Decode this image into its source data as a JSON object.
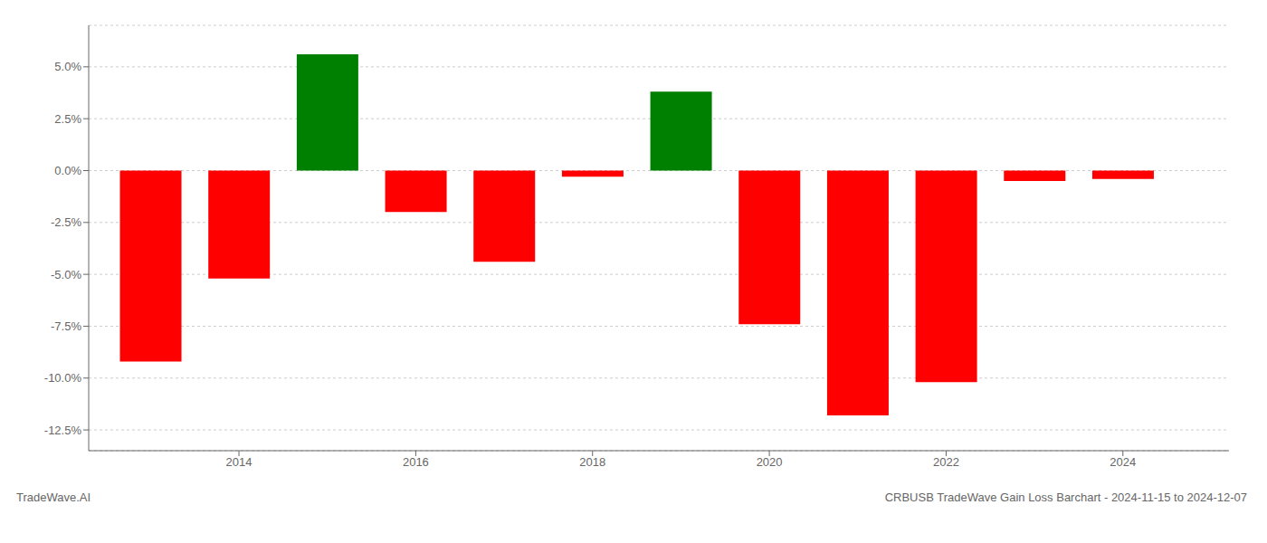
{
  "chart_data": {
    "type": "bar",
    "title": "CRBUSB TradeWave Gain Loss Barchart - 2024-11-15 to 2024-12-07",
    "subtitle": "TradeWave.AI",
    "x": [
      2013,
      2014,
      2015,
      2016,
      2017,
      2018,
      2019,
      2020,
      2021,
      2022,
      2023,
      2024
    ],
    "values": [
      -0.092,
      -0.052,
      0.056,
      -0.02,
      -0.044,
      -0.003,
      0.038,
      -0.074,
      -0.118,
      -0.102,
      -0.005,
      -0.004
    ],
    "colors": [
      "#ff0000",
      "#ff0000",
      "#008000",
      "#ff0000",
      "#ff0000",
      "#ff0000",
      "#008000",
      "#ff0000",
      "#ff0000",
      "#ff0000",
      "#ff0000",
      "#ff0000"
    ],
    "xlim": [
      2012.3,
      2025.2
    ],
    "xticks": [
      2014,
      2016,
      2018,
      2020,
      2022,
      2024
    ],
    "ylim": [
      -0.135,
      0.07
    ],
    "yticks": [
      {
        "value": -0.125,
        "label": "-12.5%"
      },
      {
        "value": -0.1,
        "label": "-10.0%"
      },
      {
        "value": -0.075,
        "label": "-7.5%"
      },
      {
        "value": -0.05,
        "label": "-5.0%"
      },
      {
        "value": -0.025,
        "label": "-2.5%"
      },
      {
        "value": 0.0,
        "label": "0.0%"
      },
      {
        "value": 0.025,
        "label": "2.5%"
      },
      {
        "value": 0.05,
        "label": "5.0%"
      }
    ],
    "grid": true
  }
}
